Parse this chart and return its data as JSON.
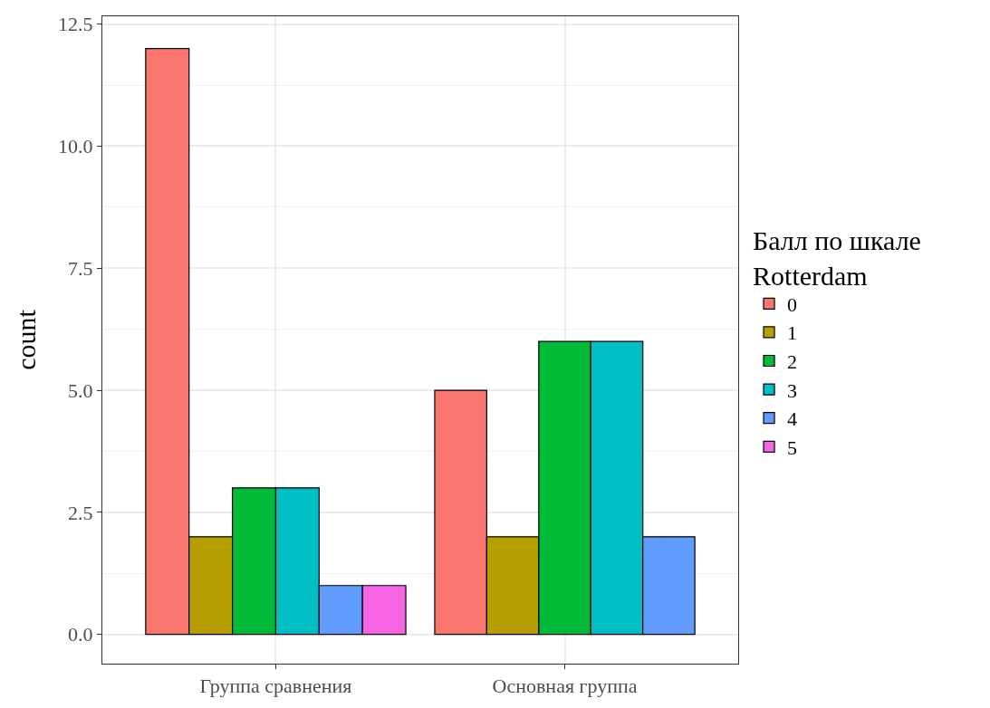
{
  "chart_data": {
    "type": "bar",
    "ylabel": "count",
    "legend_title": "Балл по шкале\nRotterdam",
    "categories": [
      "Группа сравнения",
      "Основная группа"
    ],
    "series": [
      {
        "name": "0",
        "color": "#f8766d",
        "values": [
          12,
          5
        ]
      },
      {
        "name": "1",
        "color": "#b79f00",
        "values": [
          2,
          2
        ]
      },
      {
        "name": "2",
        "color": "#00ba38",
        "values": [
          3,
          6
        ]
      },
      {
        "name": "3",
        "color": "#00bfc4",
        "values": [
          3,
          6
        ]
      },
      {
        "name": "4",
        "color": "#619cff",
        "values": [
          1,
          2
        ]
      },
      {
        "name": "5",
        "color": "#f564e3",
        "values": [
          1,
          null
        ]
      }
    ],
    "ylim": [
      -0.6,
      12.66
    ],
    "yticks": [
      {
        "value": 0,
        "label": "0.0"
      },
      {
        "value": 2.5,
        "label": "2.5"
      },
      {
        "value": 5,
        "label": "5.0"
      },
      {
        "value": 7.5,
        "label": "7.5"
      },
      {
        "value": 10,
        "label": "10.0"
      },
      {
        "value": 12.5,
        "label": "12.5"
      }
    ],
    "grid": true,
    "legend": "right"
  }
}
